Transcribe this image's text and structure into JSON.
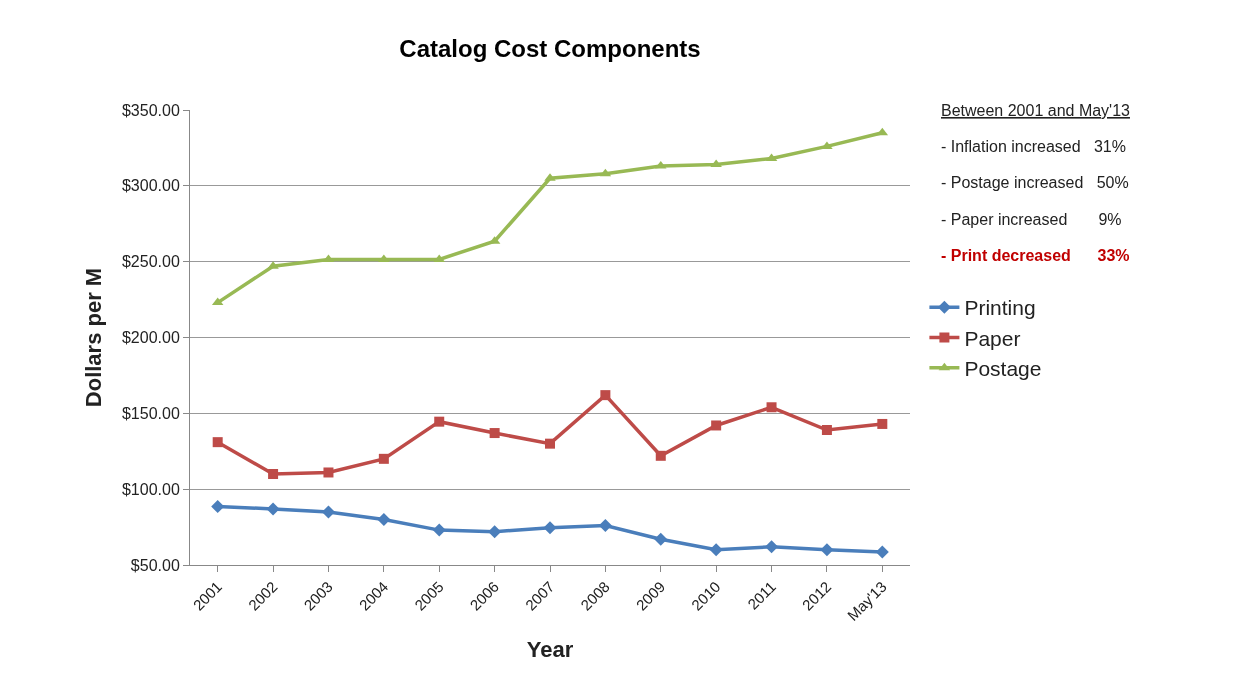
{
  "chart_data": {
    "type": "line",
    "title": "Catalog Cost Components",
    "xlabel": "Year",
    "ylabel": "Dollars per M",
    "categories": [
      "2001",
      "2002",
      "2003",
      "2004",
      "2005",
      "2006",
      "2007",
      "2008",
      "2009",
      "2010",
      "2011",
      "2012",
      "May'13"
    ],
    "series": [
      {
        "name": "Printing",
        "color": "#4a7ebb",
        "marker": "diamond",
        "values": [
          88.5,
          87,
          85,
          80,
          73,
          72,
          74.5,
          76,
          67,
          60,
          62,
          60,
          58.5
        ]
      },
      {
        "name": "Paper",
        "color": "#be4b48",
        "marker": "square",
        "values": [
          131,
          110,
          111,
          120,
          144.5,
          137,
          130,
          162,
          122,
          142,
          154,
          139,
          143
        ]
      },
      {
        "name": "Postage",
        "color": "#98b954",
        "marker": "triangle",
        "values": [
          223,
          247,
          251.5,
          251.5,
          251.5,
          263.5,
          305,
          308,
          313,
          314,
          318,
          326,
          335
        ]
      }
    ],
    "ylim": [
      50,
      350
    ],
    "yticks": [
      {
        "value": 50,
        "label": "$50.00"
      },
      {
        "value": 100,
        "label": "$100.00"
      },
      {
        "value": 150,
        "label": "$150.00"
      },
      {
        "value": 200,
        "label": "$200.00"
      },
      {
        "value": 250,
        "label": "$250.00"
      },
      {
        "value": 300,
        "label": "$300.00"
      },
      {
        "value": 350,
        "label": "$350.00"
      }
    ],
    "grid": "y",
    "legend": "right",
    "line_style": "solid",
    "annotations": [
      "Between 2001 and May'13",
      "- Inflation increased   31%",
      "- Postage increased   50%",
      "- Paper increased       9%",
      "- Print decreased      33%"
    ]
  }
}
